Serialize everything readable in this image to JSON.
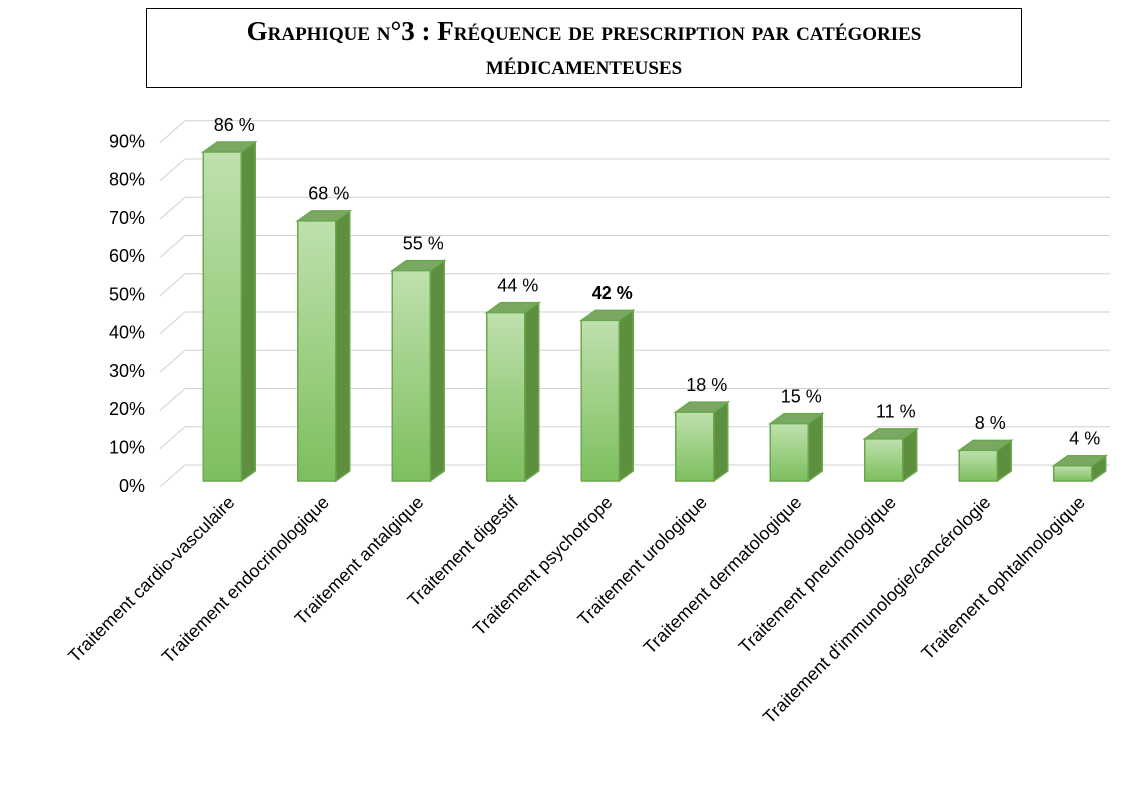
{
  "chart_data": {
    "type": "bar3d",
    "title": "Graphique n°3 : Fréquence de prescription par catégories médicamenteuses",
    "categories": [
      "Traitement cardio-vasculaire",
      "Traitement endocrinologique",
      "Traitement antalgique",
      "Traitement digestif",
      "Traitement psychotrope",
      "Traitement urologique",
      "Traitement dermatologique",
      "Traitement pneumologique",
      "Traitement d'immunologie/cancérologie",
      "Traitement ophtalmologique"
    ],
    "values": [
      86,
      68,
      55,
      44,
      42,
      18,
      15,
      11,
      8,
      4
    ],
    "value_labels": [
      "86 %",
      "68 %",
      "55 %",
      "44 %",
      "42 %",
      "18 %",
      "15 %",
      "11 %",
      "8 %",
      "4 %"
    ],
    "color": "#8cc870",
    "highlight_index": 4,
    "highlight_color": "#ff0000",
    "ylim": [
      0,
      90
    ],
    "yticks": [
      {
        "value": 0,
        "label": "0%"
      },
      {
        "value": 10,
        "label": "10%"
      },
      {
        "value": 20,
        "label": "20%"
      },
      {
        "value": 30,
        "label": "30%"
      },
      {
        "value": 40,
        "label": "40%"
      },
      {
        "value": 50,
        "label": "50%"
      },
      {
        "value": 60,
        "label": "60%"
      },
      {
        "value": 70,
        "label": "70%"
      },
      {
        "value": 80,
        "label": "80%"
      },
      {
        "value": 90,
        "label": "90%"
      }
    ],
    "grid": true
  }
}
